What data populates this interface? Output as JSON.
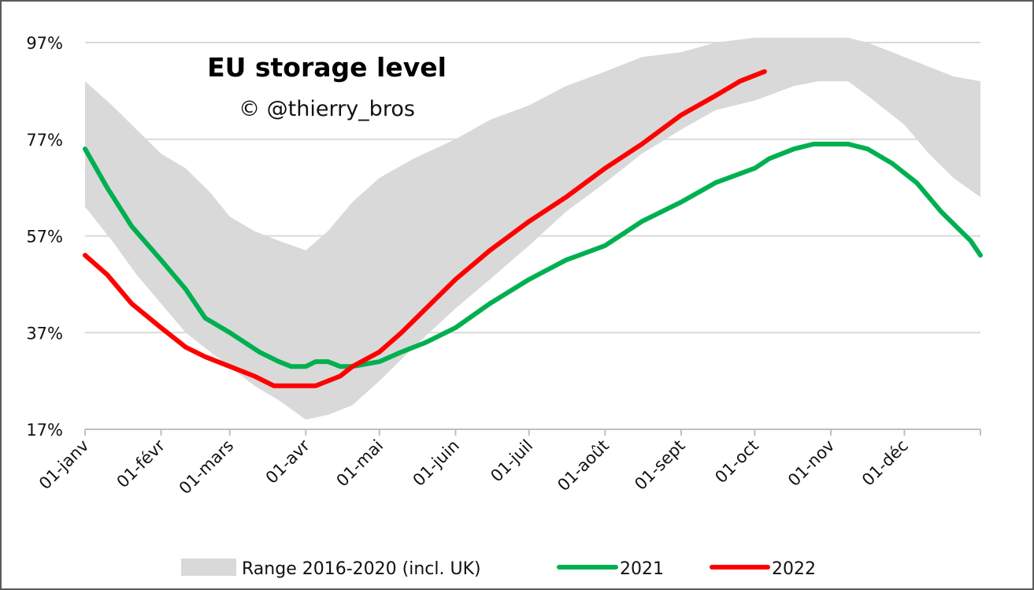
{
  "chart_data": {
    "type": "line",
    "title": "EU storage level",
    "subtitle": "© @thierry_bros",
    "y_unit": "%",
    "ylim": [
      17,
      97
    ],
    "y_ticks": [
      "97%",
      "77%",
      "57%",
      "37%",
      "17%"
    ],
    "y_tick_values": [
      97,
      77,
      57,
      37,
      17
    ],
    "x_tick_labels": [
      "01-janv",
      "01-févr",
      "01-mars",
      "01-avr",
      "01-mai",
      "01-juin",
      "01-juil",
      "01-août",
      "01-sept",
      "01-oct",
      "01-nov",
      "01-déc"
    ],
    "x_tick_days": [
      1,
      32,
      60,
      91,
      121,
      152,
      182,
      213,
      244,
      274,
      305,
      335
    ],
    "xlim_days": [
      1,
      366
    ],
    "grid": "horizontal",
    "legend_position": "bottom",
    "colors": {
      "range": "#d9d9d9",
      "s2021": "#00b050",
      "s2022": "#ff0000"
    },
    "range": {
      "name": "Range 2016-2020 (incl. UK)",
      "x": [
        1,
        12,
        22,
        32,
        42,
        52,
        60,
        70,
        80,
        91,
        100,
        110,
        121,
        135,
        152,
        166,
        182,
        197,
        213,
        228,
        244,
        258,
        274,
        290,
        300,
        312,
        320,
        335,
        345,
        355,
        366
      ],
      "low": [
        63,
        56,
        49,
        43,
        37,
        33,
        30,
        26,
        23,
        19,
        20,
        22,
        27,
        34,
        42,
        48,
        55,
        62,
        68,
        74,
        79,
        83,
        85,
        88,
        89,
        89,
        86,
        80,
        74,
        69,
        65
      ],
      "high": [
        89,
        84,
        79,
        74,
        71,
        66,
        61,
        58,
        56,
        54,
        58,
        64,
        69,
        73,
        77,
        81,
        84,
        88,
        91,
        94,
        95,
        97,
        98,
        98,
        98,
        98,
        97,
        94,
        92,
        90,
        89
      ]
    },
    "series": [
      {
        "name": "2021",
        "x": [
          1,
          10,
          20,
          32,
          42,
          50,
          60,
          66,
          72,
          80,
          85,
          91,
          95,
          100,
          105,
          110,
          121,
          130,
          140,
          152,
          166,
          182,
          197,
          213,
          228,
          244,
          258,
          274,
          280,
          290,
          298,
          305,
          312,
          320,
          330,
          340,
          350,
          358,
          362,
          366
        ],
        "y": [
          75,
          67,
          59,
          52,
          46,
          40,
          37,
          35,
          33,
          31,
          30,
          30,
          31,
          31,
          30,
          30,
          31,
          33,
          35,
          38,
          43,
          48,
          52,
          55,
          60,
          64,
          68,
          71,
          73,
          75,
          76,
          76,
          76,
          75,
          72,
          68,
          62,
          58,
          56,
          53
        ]
      },
      {
        "name": "2022",
        "x": [
          1,
          10,
          20,
          32,
          42,
          50,
          60,
          70,
          78,
          85,
          91,
          95,
          100,
          105,
          110,
          121,
          130,
          140,
          152,
          166,
          182,
          197,
          213,
          228,
          244,
          258,
          268,
          278
        ],
        "y": [
          53,
          49,
          43,
          38,
          34,
          32,
          30,
          28,
          26,
          26,
          26,
          26,
          27,
          28,
          30,
          33,
          37,
          42,
          48,
          54,
          60,
          65,
          71,
          76,
          82,
          86,
          89,
          91
        ]
      }
    ]
  }
}
